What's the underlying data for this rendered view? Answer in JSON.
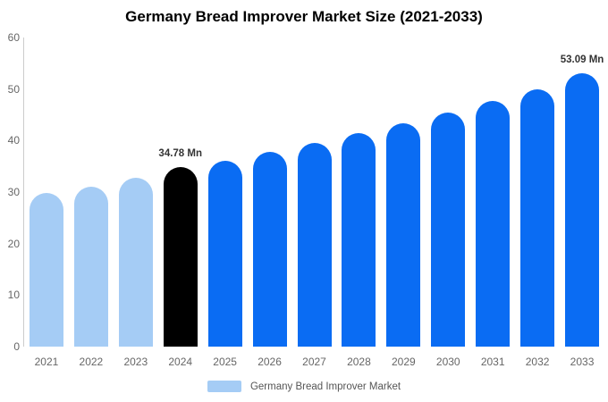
{
  "chart_data": {
    "type": "bar",
    "title": "Germany Bread Improver Market Size (2021-2033)",
    "categories": [
      "2021",
      "2022",
      "2023",
      "2024",
      "2025",
      "2026",
      "2027",
      "2028",
      "2029",
      "2030",
      "2031",
      "2032",
      "2033"
    ],
    "values": [
      29.9,
      31.0,
      32.7,
      34.78,
      36.0,
      37.8,
      39.6,
      41.5,
      43.4,
      45.4,
      47.7,
      50.0,
      53.09
    ],
    "point_labels": [
      "",
      "",
      "",
      "34.78 Mn",
      "",
      "",
      "",
      "",
      "",
      "",
      "",
      "",
      "53.09 Mn"
    ],
    "bar_colors": [
      "light",
      "light",
      "light",
      "dark",
      "primary",
      "primary",
      "primary",
      "primary",
      "primary",
      "primary",
      "primary",
      "primary",
      "primary"
    ],
    "colors": {
      "light": "#a5ccf5",
      "dark": "#000000",
      "primary": "#0a6cf3"
    },
    "ylim": [
      0,
      60
    ],
    "yticks": [
      0,
      10,
      20,
      30,
      40,
      50,
      60
    ],
    "xlabel": "",
    "ylabel": "",
    "grid": false,
    "legend_position": "bottom"
  },
  "legend": {
    "label": "Germany Bread Improver Market",
    "swatch_color": "#a5ccf5"
  }
}
